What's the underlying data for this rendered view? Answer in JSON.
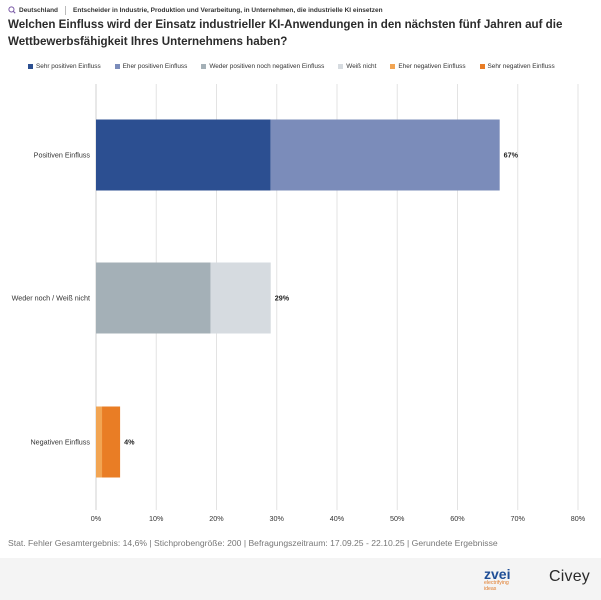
{
  "header": {
    "country": "Deutschland",
    "target_group": "Entscheider in Industrie, Produktion und Verarbeitung, in Unternehmen, die industrielle KI einsetzen"
  },
  "icons": {
    "location": "map-pin-icon"
  },
  "colors": {
    "sehr_positiv": "#2c4f91",
    "eher_positiv": "#7b8cba",
    "weder": "#a4b0b7",
    "weiss_nicht": "#d6dbe0",
    "eher_negativ": "#f2a553",
    "sehr_negativ": "#e97d25"
  },
  "chart_data": {
    "type": "bar",
    "orientation": "horizontal",
    "stacked": true,
    "title": "Welchen Einfluss wird der Einsatz industrieller KI-Anwendungen in den nächsten fünf Jahren auf die Wettbewerbsfähigkeit Ihres Unternehmens haben?",
    "categories": [
      "Positiven Einfluss",
      "Weder noch / Weiß nicht",
      "Negativen Einfluss"
    ],
    "series": [
      {
        "name": "Sehr positiven Einfluss",
        "color": "#2c4f91",
        "values": [
          29,
          0,
          0
        ]
      },
      {
        "name": "Eher positiven Einfluss",
        "color": "#7b8cba",
        "values": [
          38,
          0,
          0
        ]
      },
      {
        "name": "Weder positiven noch negativen Einfluss",
        "color": "#a4b0b7",
        "values": [
          0,
          19,
          0
        ]
      },
      {
        "name": "Weiß nicht",
        "color": "#d6dbe0",
        "values": [
          0,
          10,
          0
        ]
      },
      {
        "name": "Eher negativen Einfluss",
        "color": "#f2a553",
        "values": [
          0,
          0,
          1
        ]
      },
      {
        "name": "Sehr negativen Einfluss",
        "color": "#e97d25",
        "values": [
          0,
          0,
          3
        ]
      }
    ],
    "totals": [
      "67%",
      "29%",
      "4%"
    ],
    "xlim": [
      0,
      80
    ],
    "xticks": [
      "0%",
      "10%",
      "20%",
      "30%",
      "40%",
      "50%",
      "60%",
      "70%",
      "80%"
    ],
    "grid": true,
    "legend_position": "top"
  },
  "footer": {
    "note": "Stat. Fehler Gesamtergebnis: 14,6% | Stichprobengröße: 200 | Befragungszeitraum: 17.09.25 - 22.10.25 | Gerundete Ergebnisse"
  },
  "branding": {
    "zvei": "zvei",
    "zvei_tagline_1": "electrifying",
    "zvei_tagline_2": "ideas",
    "civey": "Civey"
  }
}
